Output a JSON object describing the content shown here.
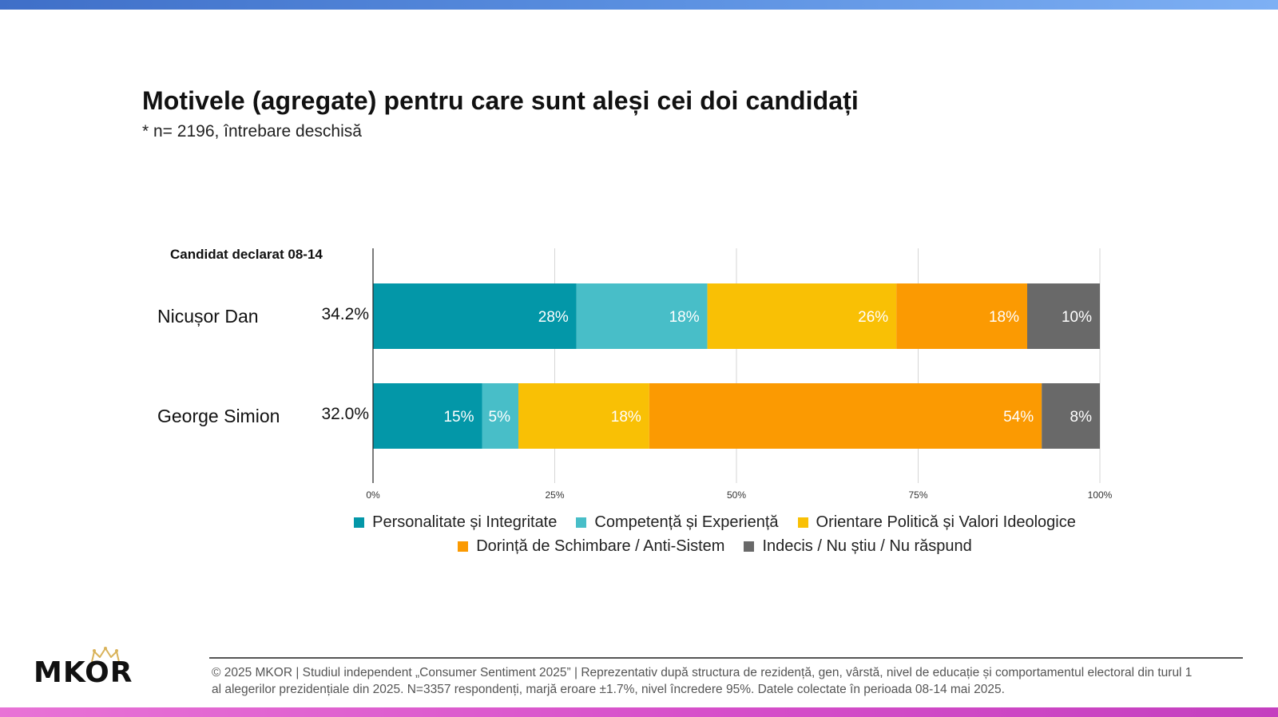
{
  "title": "Motivele (agregate) pentru care sunt aleși cei doi candidați",
  "subtitle": "* n= 2196, întrebare deschisă",
  "chart_data": {
    "type": "bar",
    "orientation": "horizontal",
    "stacked": true,
    "row_header": "Candidat declarat 08-14",
    "categories": [
      "Nicușor Dan",
      "George Simion"
    ],
    "category_share": [
      "34.2%",
      "32.0%"
    ],
    "series": [
      {
        "name": "Personalitate și Integritate",
        "color": "#0397a8",
        "values": [
          28,
          15
        ],
        "labels": [
          "28%",
          "15%"
        ]
      },
      {
        "name": "Competență și Experiență",
        "color": "#48bec8",
        "values": [
          18,
          5
        ],
        "labels": [
          "18%",
          "5%"
        ]
      },
      {
        "name": "Orientare Politică și Valori Ideologice",
        "color": "#f9c005",
        "values": [
          26,
          18
        ],
        "labels": [
          "26%",
          "18%"
        ]
      },
      {
        "name": "Dorință de Schimbare / Anti-Sistem",
        "color": "#fb9a02",
        "values": [
          18,
          54
        ],
        "labels": [
          "18%",
          "54%"
        ]
      },
      {
        "name": "Indecis / Nu știu / Nu răspund",
        "color": "#696969",
        "values": [
          10,
          8
        ],
        "labels": [
          "10%",
          "8%"
        ]
      }
    ],
    "xlim": [
      0,
      100
    ],
    "xticks": [
      0,
      25,
      50,
      75,
      100
    ],
    "xtick_labels": [
      "0%",
      "25%",
      "50%",
      "75%",
      "100%"
    ],
    "grid": true,
    "legend_position": "bottom"
  },
  "logo": {
    "text": "MKOR",
    "crown_color": "#d9b35a"
  },
  "footer": "© 2025 MKOR | Studiul independent „Consumer Sentiment 2025” | Reprezentativ după structura de rezidență, gen, vârstă, nivel de educație și comportamentul electoral din turul 1 al alegerilor prezidențiale din 2025. N=3357 respondenți, marjă eroare ±1.7%, nivel încredere 95%. Datele colectate în perioada 08-14 mai 2025."
}
